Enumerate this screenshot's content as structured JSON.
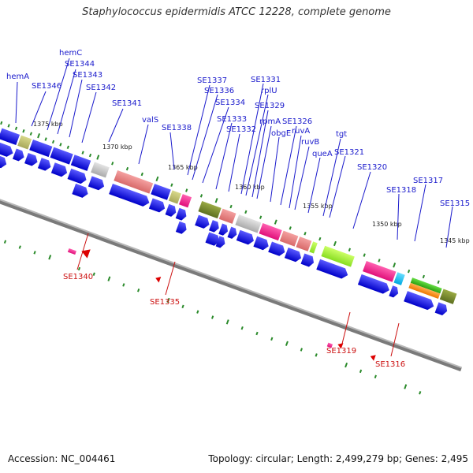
{
  "title": "Staphylococcus epidermidis ATCC 12228, complete genome",
  "accession_line": "Accession: NC_004461",
  "summary_line": "Topology: circular; Length: 2,499,279 bp; Genes: 2,495",
  "ruler_labels": [
    "1375 kbp",
    "1370 kbp",
    "1365 kbp",
    "1360 kbp",
    "1355 kbp",
    "1350 kbp",
    "1345 kbp"
  ],
  "top_gene_labels": [
    "hemA",
    "SE1346",
    "hemC",
    "SE1344",
    "SE1343",
    "SE1342",
    "SE1341",
    "valS",
    "SE1338",
    "SE1337",
    "SE1336",
    "SE1334",
    "SE1333",
    "SE1332",
    "SE1331",
    "rplU",
    "SE1329",
    "rpmA",
    "obgE",
    "SE1326",
    "ruvA",
    "ruvB",
    "queA",
    "tgt",
    "SE1321",
    "SE1320",
    "SE1318",
    "SE1317",
    "SE1315"
  ],
  "bottom_gene_labels": [
    "SE1340",
    "SE1335",
    "SE1319",
    "SE1316"
  ],
  "colors": {
    "forward": "#1010dd",
    "reverse": "#cc0000",
    "backbone": "#888888",
    "tick": "#2a8a2a"
  }
}
